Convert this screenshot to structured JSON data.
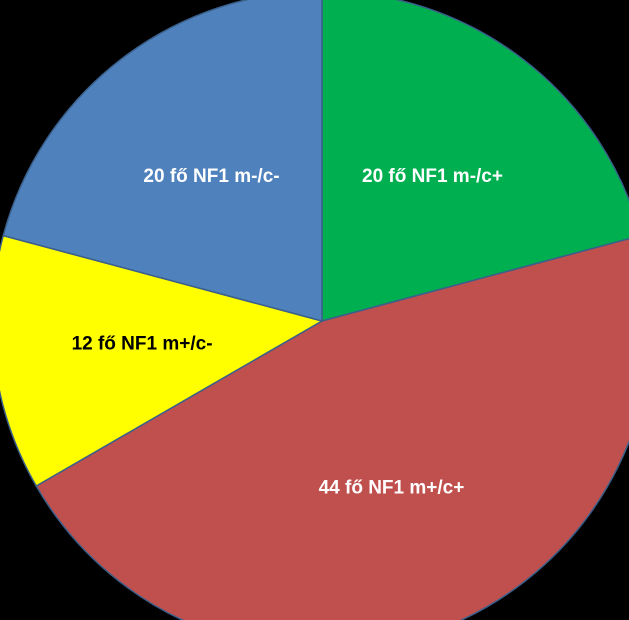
{
  "chart_data": {
    "type": "pie",
    "categories": [
      "20 fő NF1 m-/c+",
      "44 fő NF1 m+/c+",
      "12 fő NF1 m+/c-",
      "20 fő NF1 m-/c-"
    ],
    "values": [
      20,
      44,
      12,
      20
    ],
    "colors": [
      "#00b050",
      "#c0504d",
      "#ffff00",
      "#4f81bd"
    ],
    "label_colors": [
      "#ffffff",
      "#ffffff",
      "#000000",
      "#ffffff"
    ],
    "start_angle": 0,
    "direction": "clockwise"
  }
}
